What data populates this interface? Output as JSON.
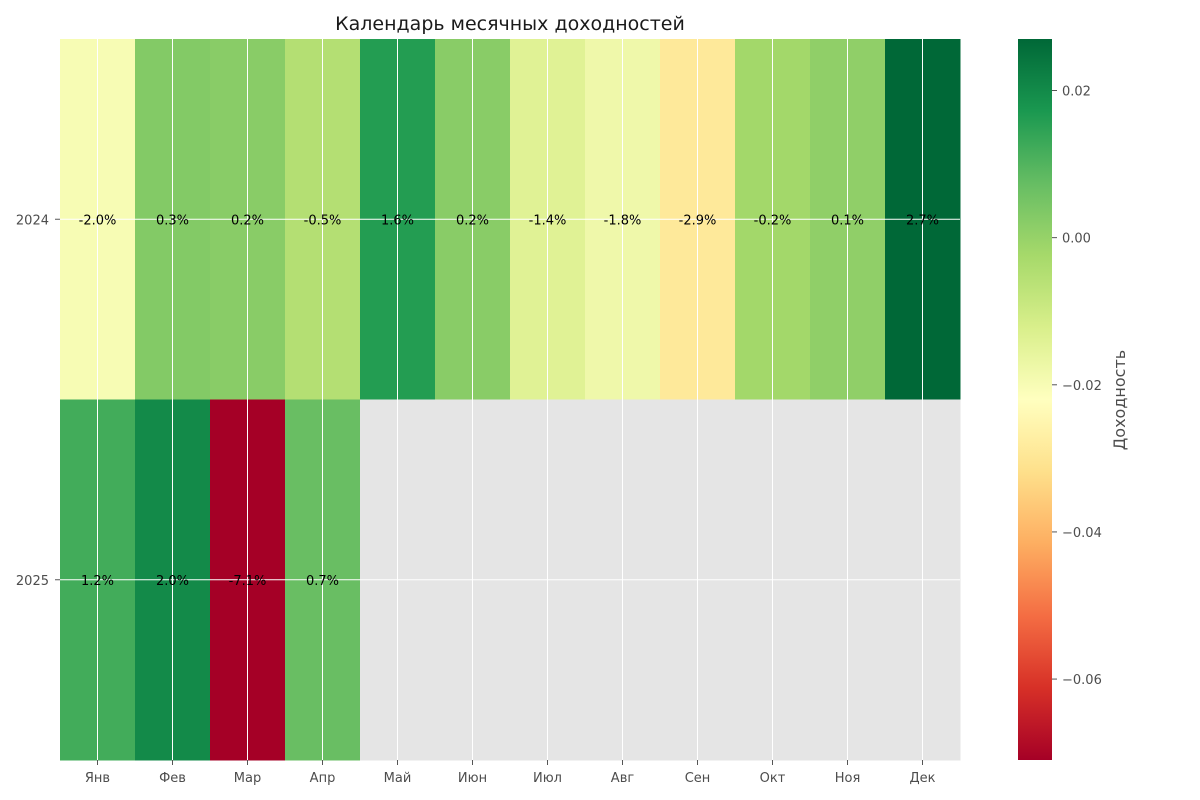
{
  "chart_data": {
    "type": "heatmap",
    "title": "Календарь месячных доходностей",
    "x_categories": [
      "Янв",
      "Фев",
      "Мар",
      "Апр",
      "Май",
      "Июн",
      "Июл",
      "Авг",
      "Сен",
      "Окт",
      "Ноя",
      "Дек"
    ],
    "y_categories": [
      "2024",
      "2025"
    ],
    "values": [
      [
        -0.02,
        0.003,
        0.002,
        -0.005,
        0.016,
        0.002,
        -0.014,
        -0.018,
        -0.029,
        -0.002,
        0.001,
        0.027
      ],
      [
        0.012,
        0.02,
        -0.071,
        0.007,
        null,
        null,
        null,
        null,
        null,
        null,
        null,
        null
      ]
    ],
    "cell_labels": [
      [
        "-2.0%",
        "0.3%",
        "0.2%",
        "-0.5%",
        "1.6%",
        "0.2%",
        "-1.4%",
        "-1.8%",
        "-2.9%",
        "-0.2%",
        "0.1%",
        "2.7%"
      ],
      [
        "1.2%",
        "2.0%",
        "-7.1%",
        "0.7%",
        "",
        "",
        "",
        "",
        "",
        "",
        "",
        ""
      ]
    ],
    "colormap": "RdYlGn",
    "colorbar": {
      "label": "Доходность",
      "range": [
        -0.071,
        0.027
      ],
      "ticks": [
        0.02,
        0.0,
        -0.02,
        -0.04,
        -0.06
      ],
      "tick_labels": [
        "0.02",
        "0.00",
        "−0.02",
        "−0.04",
        "−0.06"
      ]
    },
    "missing_color": "#e5e5e5",
    "grid": true
  }
}
